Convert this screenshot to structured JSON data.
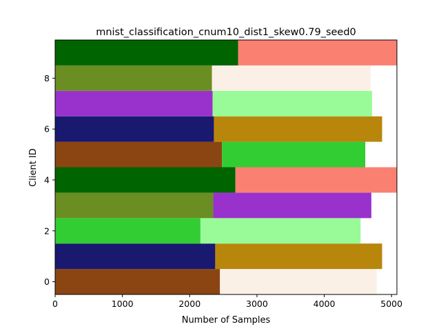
{
  "chart_data": {
    "type": "bar",
    "orientation": "horizontal",
    "stacked": true,
    "title": "mnist_classification_cnum10_dist1_skew0.79_seed0",
    "xlabel": "Number of Samples",
    "ylabel": "Client ID",
    "xlim": [
      0,
      5080
    ],
    "ylim": [
      -0.5,
      9.5
    ],
    "xticks": [
      "0",
      "1000",
      "2000",
      "3000",
      "4000",
      "5000"
    ],
    "yticks": [
      "0",
      "2",
      "4",
      "6",
      "8"
    ],
    "grid": false,
    "clients": [
      {
        "id": 0,
        "segments": [
          {
            "value": 2450,
            "color": "#8B4513"
          },
          {
            "value": 2330,
            "color": "#FAF0E6"
          }
        ]
      },
      {
        "id": 1,
        "segments": [
          {
            "value": 2380,
            "color": "#191970"
          },
          {
            "value": 2480,
            "color": "#B8860B"
          }
        ]
      },
      {
        "id": 2,
        "segments": [
          {
            "value": 2160,
            "color": "#32CD32"
          },
          {
            "value": 2380,
            "color": "#98FB98"
          }
        ]
      },
      {
        "id": 3,
        "segments": [
          {
            "value": 2350,
            "color": "#6B8E23"
          },
          {
            "value": 2350,
            "color": "#9932CC"
          }
        ]
      },
      {
        "id": 4,
        "segments": [
          {
            "value": 2680,
            "color": "#006400"
          },
          {
            "value": 2400,
            "color": "#FA8072"
          }
        ]
      },
      {
        "id": 5,
        "segments": [
          {
            "value": 2480,
            "color": "#8B4513"
          },
          {
            "value": 2130,
            "color": "#32CD32"
          }
        ]
      },
      {
        "id": 6,
        "segments": [
          {
            "value": 2360,
            "color": "#191970"
          },
          {
            "value": 2500,
            "color": "#B8860B"
          }
        ]
      },
      {
        "id": 7,
        "segments": [
          {
            "value": 2340,
            "color": "#9932CC"
          },
          {
            "value": 2370,
            "color": "#98FB98"
          }
        ]
      },
      {
        "id": 8,
        "segments": [
          {
            "value": 2330,
            "color": "#6B8E23"
          },
          {
            "value": 2360,
            "color": "#FAF0E6"
          }
        ]
      },
      {
        "id": 9,
        "segments": [
          {
            "value": 2720,
            "color": "#006400"
          },
          {
            "value": 2360,
            "color": "#FA8072"
          }
        ]
      }
    ]
  }
}
